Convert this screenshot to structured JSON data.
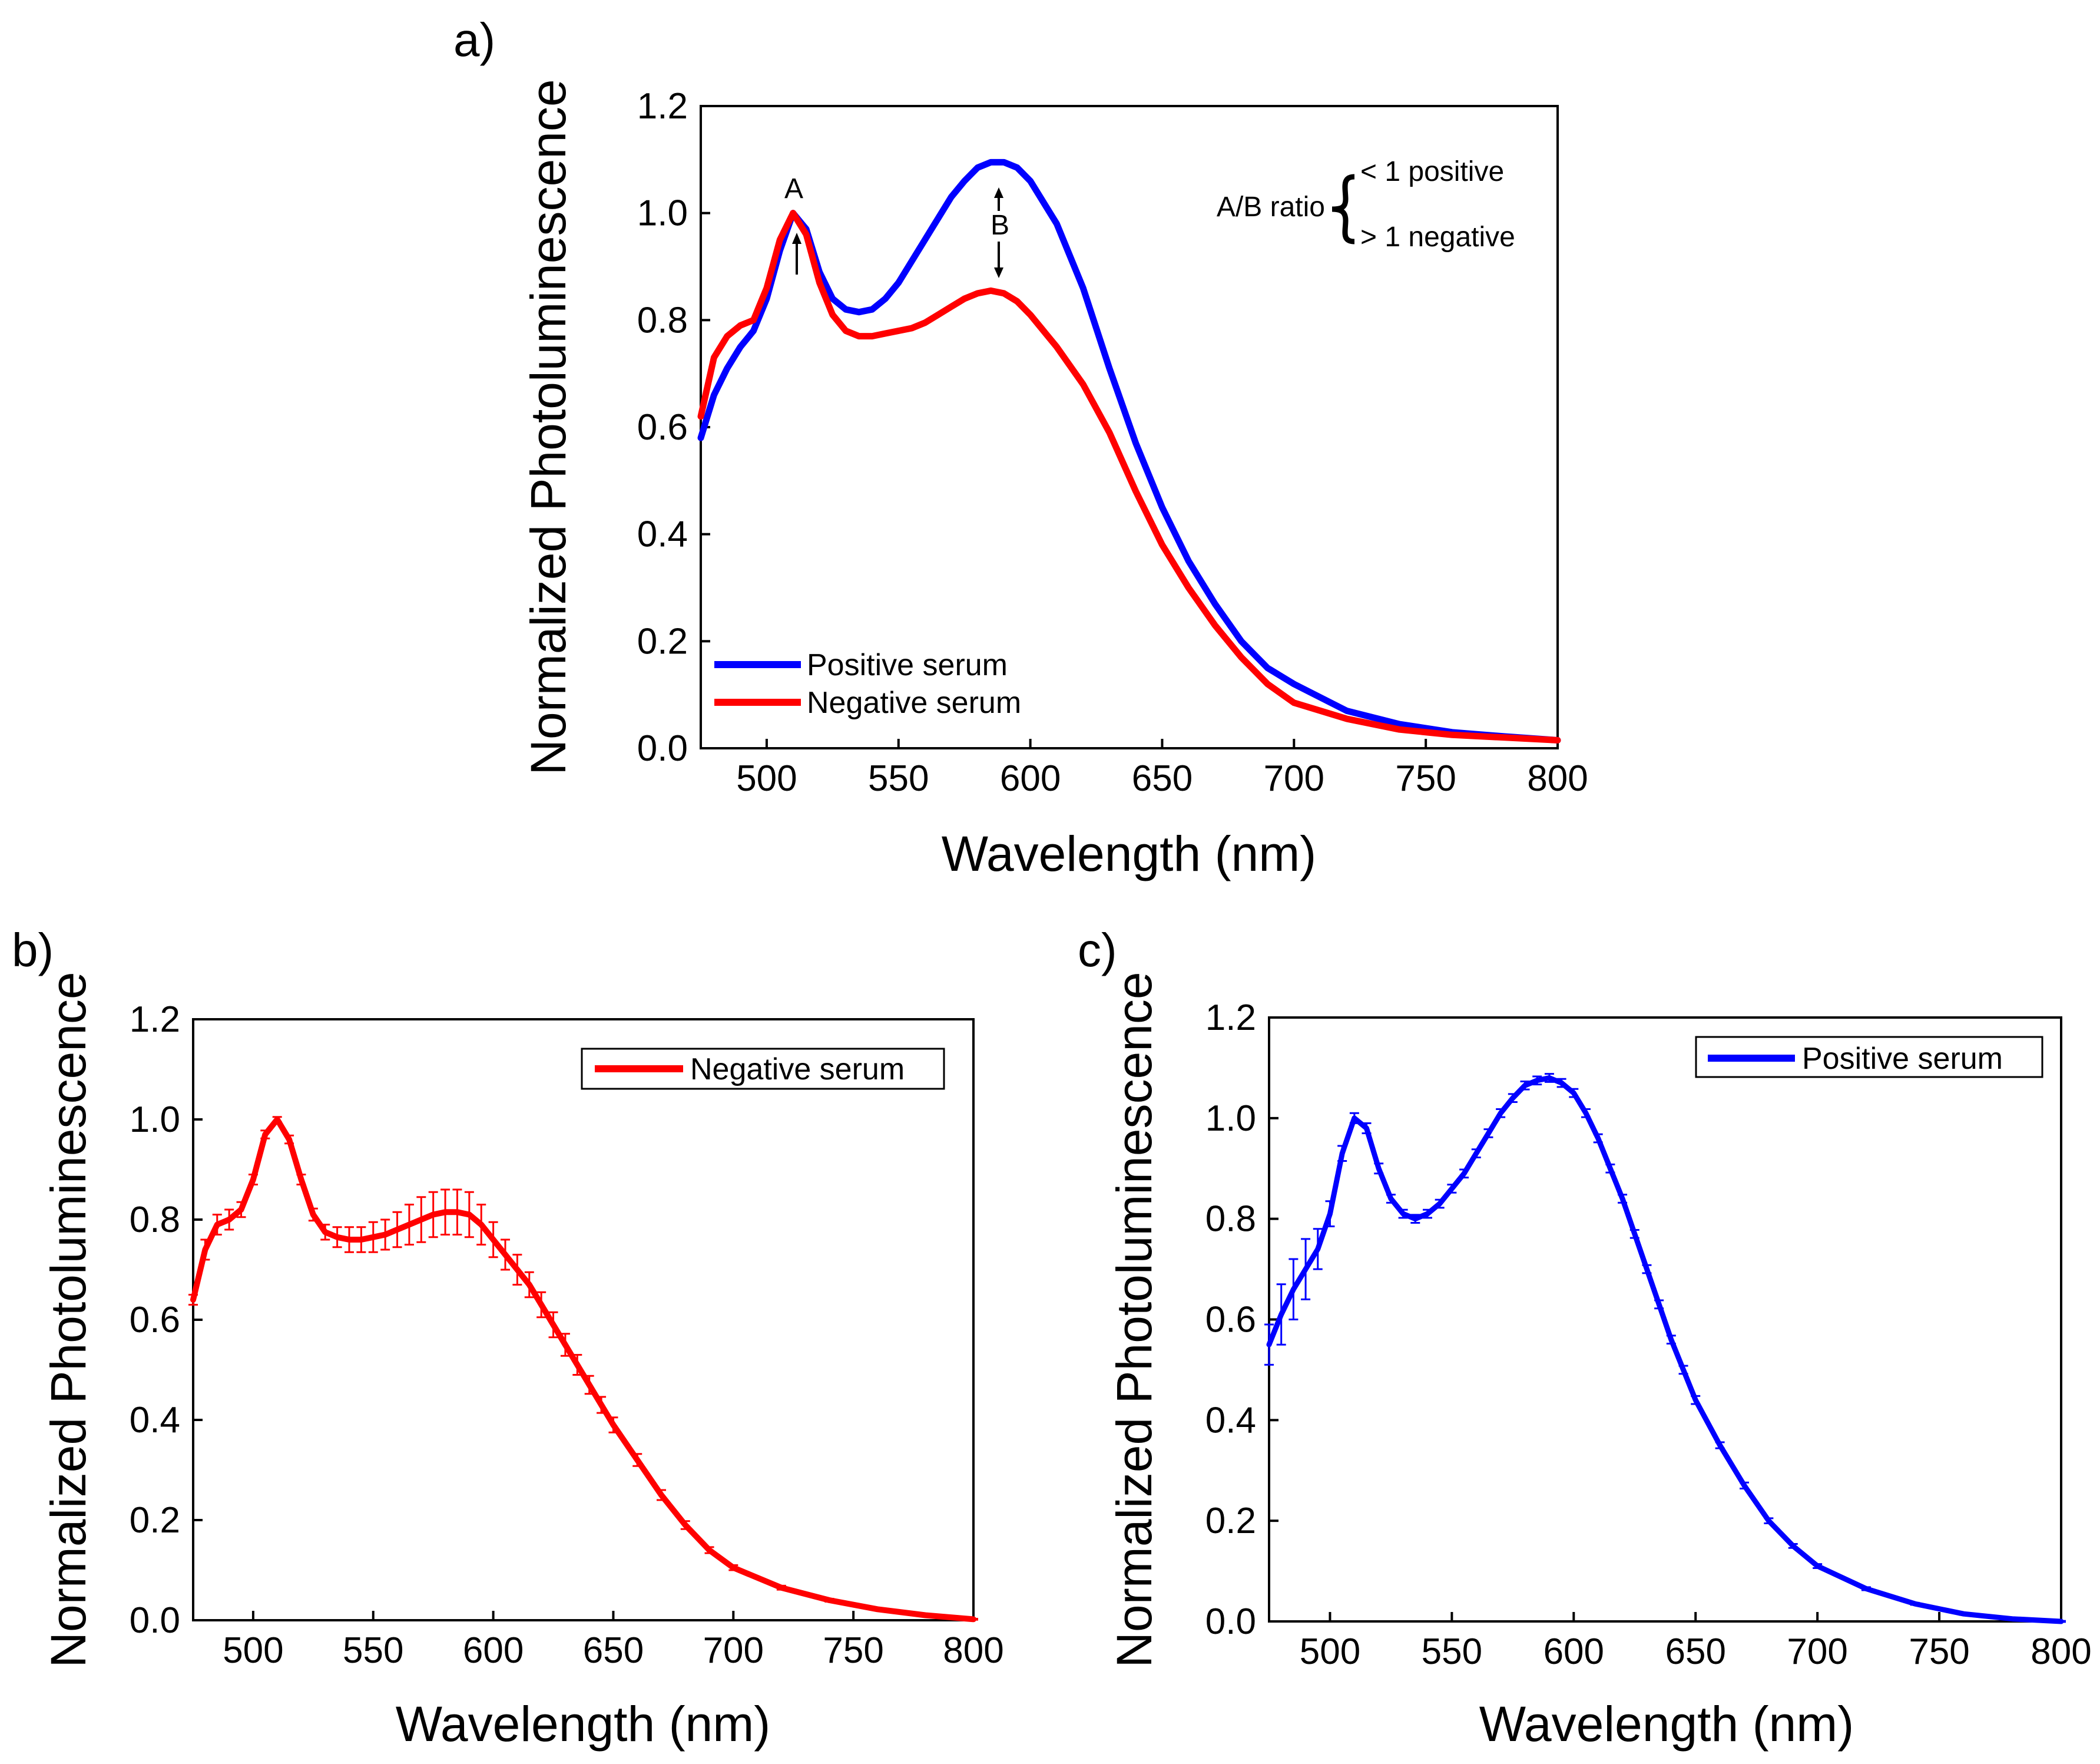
{
  "chart_data": [
    {
      "panel": "a)",
      "type": "line",
      "xlabel": "Wavelength (nm)",
      "ylabel": "Normalized Photoluminescence",
      "xlim": [
        475,
        800
      ],
      "ylim": [
        0.0,
        1.2
      ],
      "xticks": [
        500,
        550,
        600,
        650,
        700,
        750,
        800
      ],
      "yticks": [
        0.0,
        0.2,
        0.4,
        0.6,
        0.8,
        1.0,
        1.2
      ],
      "tick_labels_y": [
        "0.0",
        "0.2",
        "0.4",
        "0.6",
        "0.8",
        "1.0",
        "1.2"
      ],
      "legend": "bottom-left, no frame",
      "series": [
        {
          "name": "Positive serum",
          "color": "#0000ff",
          "x": [
            475,
            480,
            485,
            490,
            495,
            500,
            505,
            510,
            515,
            520,
            525,
            530,
            535,
            540,
            545,
            550,
            555,
            560,
            565,
            570,
            575,
            580,
            585,
            590,
            595,
            600,
            610,
            620,
            630,
            640,
            650,
            660,
            670,
            680,
            690,
            700,
            720,
            740,
            760,
            780,
            800
          ],
          "y": [
            0.58,
            0.66,
            0.71,
            0.75,
            0.78,
            0.84,
            0.93,
            1.0,
            0.97,
            0.89,
            0.84,
            0.82,
            0.815,
            0.82,
            0.84,
            0.87,
            0.91,
            0.95,
            0.99,
            1.03,
            1.06,
            1.085,
            1.095,
            1.095,
            1.085,
            1.06,
            0.98,
            0.86,
            0.71,
            0.57,
            0.45,
            0.35,
            0.27,
            0.2,
            0.15,
            0.12,
            0.07,
            0.045,
            0.03,
            0.022,
            0.015
          ]
        },
        {
          "name": "Negative serum",
          "color": "#ff0000",
          "x": [
            475,
            480,
            485,
            490,
            495,
            500,
            505,
            510,
            515,
            520,
            525,
            530,
            535,
            540,
            545,
            550,
            555,
            560,
            565,
            570,
            575,
            580,
            585,
            590,
            595,
            600,
            610,
            620,
            630,
            640,
            650,
            660,
            670,
            680,
            690,
            700,
            720,
            740,
            760,
            780,
            800
          ],
          "y": [
            0.62,
            0.73,
            0.77,
            0.79,
            0.8,
            0.86,
            0.95,
            1.0,
            0.96,
            0.87,
            0.81,
            0.78,
            0.77,
            0.77,
            0.775,
            0.78,
            0.785,
            0.795,
            0.81,
            0.825,
            0.84,
            0.85,
            0.855,
            0.85,
            0.835,
            0.81,
            0.75,
            0.68,
            0.59,
            0.48,
            0.38,
            0.3,
            0.23,
            0.17,
            0.12,
            0.085,
            0.055,
            0.035,
            0.025,
            0.02,
            0.015
          ]
        }
      ],
      "annotations": {
        "peak_a": "A",
        "peak_b": "B",
        "ratio_label": "A/B ratio",
        "ratio_positive": "< 1 positive",
        "ratio_negative": "> 1 negative"
      }
    },
    {
      "panel": "b)",
      "type": "line",
      "error_bars": true,
      "xlabel": "Wavelength (nm)",
      "ylabel": "Normalized Photoluminescence",
      "xlim": [
        475,
        800
      ],
      "ylim": [
        0.0,
        1.2
      ],
      "xticks": [
        500,
        550,
        600,
        650,
        700,
        750,
        800
      ],
      "yticks": [
        0.0,
        0.2,
        0.4,
        0.6,
        0.8,
        1.0,
        1.2
      ],
      "tick_labels_y": [
        "0.0",
        "0.2",
        "0.4",
        "0.6",
        "0.8",
        "1.0",
        "1.2"
      ],
      "legend": "top-right, framed",
      "series": [
        {
          "name": "Negative serum",
          "color": "#ff0000",
          "x": [
            475,
            480,
            485,
            490,
            495,
            500,
            505,
            510,
            515,
            520,
            525,
            530,
            535,
            540,
            545,
            550,
            555,
            560,
            565,
            570,
            575,
            580,
            585,
            590,
            595,
            600,
            605,
            610,
            615,
            620,
            625,
            630,
            635,
            640,
            645,
            650,
            660,
            670,
            680,
            690,
            700,
            720,
            740,
            760,
            780,
            800
          ],
          "y": [
            0.64,
            0.74,
            0.79,
            0.8,
            0.82,
            0.88,
            0.97,
            1.0,
            0.96,
            0.88,
            0.81,
            0.775,
            0.765,
            0.76,
            0.76,
            0.765,
            0.77,
            0.78,
            0.79,
            0.8,
            0.81,
            0.815,
            0.815,
            0.81,
            0.79,
            0.76,
            0.73,
            0.7,
            0.67,
            0.63,
            0.59,
            0.55,
            0.51,
            0.47,
            0.43,
            0.39,
            0.32,
            0.25,
            0.19,
            0.14,
            0.105,
            0.065,
            0.04,
            0.022,
            0.01,
            0.002
          ],
          "err": [
            0.01,
            0.02,
            0.02,
            0.02,
            0.015,
            0.01,
            0.008,
            0.005,
            0.008,
            0.01,
            0.012,
            0.015,
            0.02,
            0.025,
            0.025,
            0.03,
            0.03,
            0.035,
            0.04,
            0.045,
            0.045,
            0.045,
            0.045,
            0.045,
            0.04,
            0.035,
            0.03,
            0.03,
            0.025,
            0.025,
            0.025,
            0.022,
            0.02,
            0.018,
            0.016,
            0.015,
            0.012,
            0.01,
            0.008,
            0.006,
            0.005,
            0.004,
            0.003,
            0.002,
            0.002,
            0.001
          ]
        }
      ]
    },
    {
      "panel": "c)",
      "type": "line",
      "error_bars": true,
      "xlabel": "Wavelength (nm)",
      "ylabel": "Normalized Photoluminescence",
      "xlim": [
        475,
        800
      ],
      "ylim": [
        0.0,
        1.2
      ],
      "xticks": [
        500,
        550,
        600,
        650,
        700,
        750,
        800
      ],
      "yticks": [
        0.0,
        0.2,
        0.4,
        0.6,
        0.8,
        1.0,
        1.2
      ],
      "tick_labels_y": [
        "0.0",
        "0.2",
        "0.4",
        "0.6",
        "0.8",
        "1.0",
        "1.2"
      ],
      "legend": "top-right, framed",
      "series": [
        {
          "name": "Positive serum",
          "color": "#0000ff",
          "x": [
            475,
            480,
            485,
            490,
            495,
            500,
            505,
            510,
            515,
            520,
            525,
            530,
            535,
            540,
            545,
            550,
            555,
            560,
            565,
            570,
            575,
            580,
            585,
            590,
            595,
            600,
            605,
            610,
            615,
            620,
            625,
            630,
            635,
            640,
            645,
            650,
            660,
            670,
            680,
            690,
            700,
            720,
            740,
            760,
            780,
            800
          ],
          "y": [
            0.55,
            0.61,
            0.66,
            0.7,
            0.74,
            0.81,
            0.93,
            1.0,
            0.98,
            0.9,
            0.84,
            0.81,
            0.8,
            0.81,
            0.83,
            0.86,
            0.89,
            0.93,
            0.97,
            1.01,
            1.04,
            1.065,
            1.075,
            1.08,
            1.07,
            1.05,
            1.01,
            0.96,
            0.9,
            0.84,
            0.77,
            0.7,
            0.63,
            0.56,
            0.5,
            0.44,
            0.35,
            0.27,
            0.2,
            0.15,
            0.11,
            0.065,
            0.035,
            0.015,
            0.005,
            0.0
          ],
          "err": [
            0.04,
            0.06,
            0.06,
            0.06,
            0.04,
            0.025,
            0.015,
            0.01,
            0.01,
            0.01,
            0.008,
            0.008,
            0.008,
            0.008,
            0.008,
            0.008,
            0.008,
            0.008,
            0.008,
            0.008,
            0.008,
            0.008,
            0.008,
            0.008,
            0.008,
            0.008,
            0.008,
            0.008,
            0.008,
            0.008,
            0.008,
            0.008,
            0.008,
            0.008,
            0.008,
            0.008,
            0.006,
            0.006,
            0.005,
            0.004,
            0.004,
            0.003,
            0.002,
            0.002,
            0.001,
            0.001
          ]
        }
      ]
    }
  ]
}
